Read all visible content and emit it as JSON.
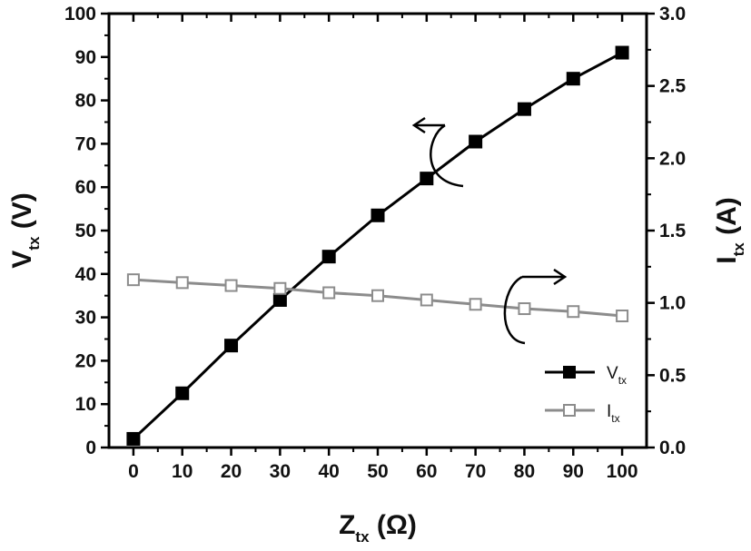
{
  "chart_data": {
    "type": "line",
    "title": "",
    "x": [
      0,
      10,
      20,
      30,
      40,
      50,
      60,
      70,
      80,
      90,
      100
    ],
    "xticks": [
      "0",
      "10",
      "20",
      "30",
      "40",
      "50",
      "60",
      "70",
      "80",
      "90",
      "100"
    ],
    "xlim": [
      -5,
      105
    ],
    "xlabel": {
      "main": "Z",
      "sub": "tx",
      "unit": " (Ω)"
    },
    "ylabel_left": {
      "main": "V",
      "sub": "tx",
      "unit": " (V)"
    },
    "ylabel_right": {
      "main": "I",
      "sub": "tx",
      "unit": " (A)"
    },
    "ylim_left": [
      0,
      100
    ],
    "ylim_right": [
      0,
      3
    ],
    "yticks_left": [
      "0",
      "10",
      "20",
      "30",
      "40",
      "50",
      "60",
      "70",
      "80",
      "90",
      "100"
    ],
    "yticks_right": [
      "0.0",
      "0.5",
      "1.0",
      "1.5",
      "2.0",
      "2.5",
      "3.0"
    ],
    "grid": false,
    "legend_position": "bottom-right",
    "series": [
      {
        "name": "V",
        "name_sub": "tx",
        "axis": "left",
        "marker": "filled-square",
        "color": "#000000",
        "values": [
          2,
          12.5,
          23.5,
          34,
          44,
          53.5,
          62,
          70.5,
          78,
          85,
          91
        ]
      },
      {
        "name": "I",
        "name_sub": "tx",
        "axis": "right",
        "marker": "open-square",
        "color": "#8c8c8c",
        "values": [
          1.16,
          1.14,
          1.12,
          1.1,
          1.07,
          1.05,
          1.02,
          0.99,
          0.96,
          0.94,
          0.91
        ]
      }
    ],
    "annotations": [
      {
        "type": "curved-arrow",
        "direction": "left",
        "target_axis": "left"
      },
      {
        "type": "curved-arrow",
        "direction": "right",
        "target_axis": "right"
      }
    ]
  }
}
